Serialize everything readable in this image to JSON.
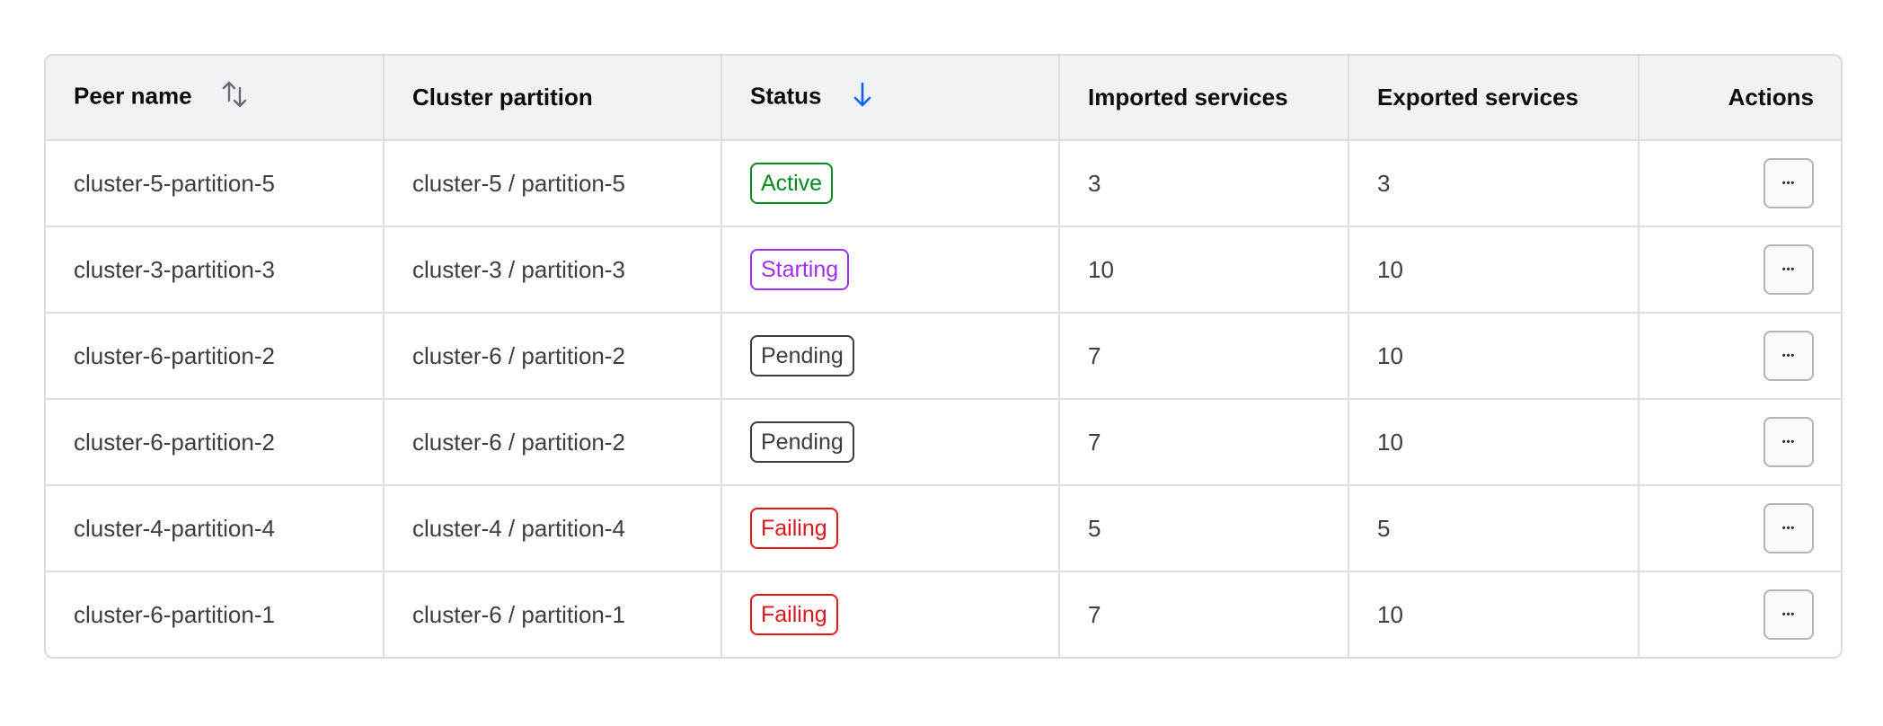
{
  "columns": {
    "peer_name": "Peer name",
    "cluster_partition": "Cluster partition",
    "status": "Status",
    "imported": "Imported services",
    "exported": "Exported services",
    "actions": "Actions"
  },
  "sort": {
    "peer_name": "unsorted",
    "status": "descending",
    "active_color": "#1060ff"
  },
  "status_colors": {
    "Active": "#008a22",
    "Starting": "#9e2fff",
    "Pending": "#3b3d45",
    "Failing": "#e5141a"
  },
  "rows": [
    {
      "peer_name": "cluster-5-partition-5",
      "cluster_partition": "cluster-5 / partition-5",
      "status": "Active",
      "imported": "3",
      "exported": "3"
    },
    {
      "peer_name": "cluster-3-partition-3",
      "cluster_partition": "cluster-3 / partition-3",
      "status": "Starting",
      "imported": "10",
      "exported": "10"
    },
    {
      "peer_name": "cluster-6-partition-2",
      "cluster_partition": "cluster-6 / partition-2",
      "status": "Pending",
      "imported": "7",
      "exported": "10"
    },
    {
      "peer_name": "cluster-6-partition-2",
      "cluster_partition": "cluster-6 / partition-2",
      "status": "Pending",
      "imported": "7",
      "exported": "10"
    },
    {
      "peer_name": "cluster-4-partition-4",
      "cluster_partition": "cluster-4 / partition-4",
      "status": "Failing",
      "imported": "5",
      "exported": "5"
    },
    {
      "peer_name": "cluster-6-partition-1",
      "cluster_partition": "cluster-6 / partition-1",
      "status": "Failing",
      "imported": "7",
      "exported": "10"
    }
  ],
  "action_icon": "ellipsis-icon",
  "action_glyph": "•••"
}
